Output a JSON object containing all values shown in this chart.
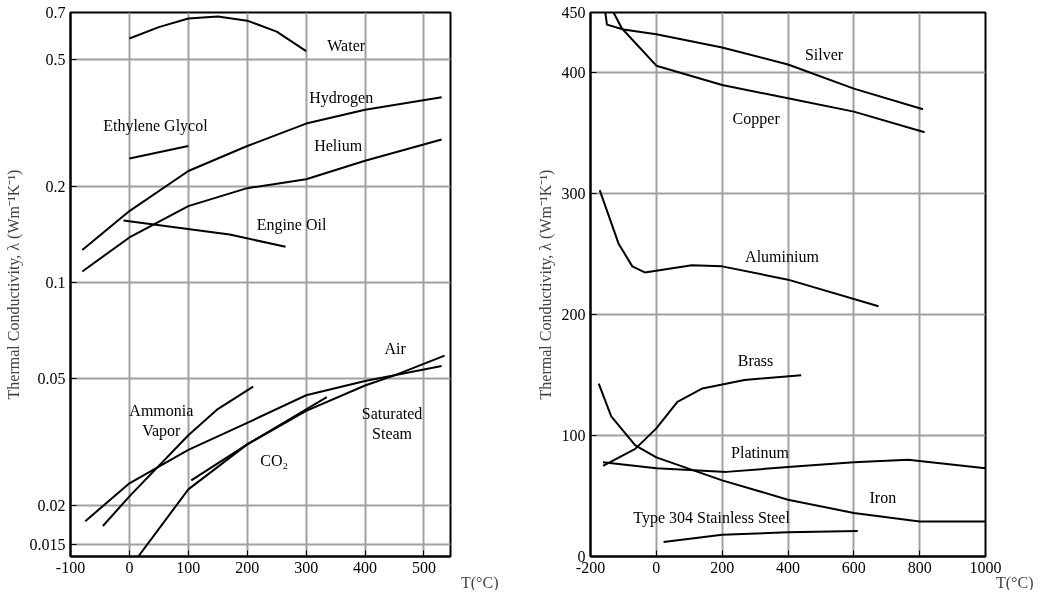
{
  "chart_data": [
    {
      "type": "line",
      "xlabel": "T(°C)",
      "ylabel": "Thermal Conductivity, λ (Wm⁻¹K⁻¹)",
      "log": "y",
      "grid": true,
      "line_style": "solid",
      "xlim": [
        -100,
        545
      ],
      "xticks": [
        -100,
        0,
        100,
        200,
        300,
        400,
        500
      ],
      "ylim": [
        0.0138,
        0.7
      ],
      "yticks": [
        0.015,
        0.02,
        0.05,
        0.1,
        0.2,
        0.5,
        0.7
      ],
      "series": [
        {
          "name": "Water",
          "color": "#000000",
          "x": [
            0,
            50,
            100,
            150,
            200,
            250,
            300
          ],
          "values": [
            0.58,
            0.63,
            0.67,
            0.68,
            0.66,
            0.61,
            0.53
          ]
        },
        {
          "name": "Hydrogen",
          "color": "#000000",
          "x": [
            -80,
            0,
            100,
            200,
            300,
            400,
            530
          ],
          "values": [
            0.126,
            0.167,
            0.223,
            0.267,
            0.314,
            0.347,
            0.38
          ]
        },
        {
          "name": "Helium",
          "color": "#000000",
          "x": [
            -80,
            0,
            100,
            200,
            300,
            400,
            530
          ],
          "values": [
            0.108,
            0.138,
            0.173,
            0.197,
            0.21,
            0.24,
            0.28
          ]
        },
        {
          "name": "Ethylene Glycol",
          "color": "#000000",
          "x": [
            0,
            100
          ],
          "values": [
            0.244,
            0.267
          ]
        },
        {
          "name": "Engine Oil",
          "color": "#000000",
          "x": [
            -10,
            170,
            265
          ],
          "values": [
            0.156,
            0.141,
            0.129
          ]
        },
        {
          "name": "Air",
          "color": "#000000",
          "x": [
            -75,
            0,
            100,
            200,
            300,
            400,
            530
          ],
          "values": [
            0.0178,
            0.0234,
            0.0298,
            0.0362,
            0.0442,
            0.049,
            0.0546
          ]
        },
        {
          "name": "Saturated Steam",
          "color": "#000000",
          "x": [
            15,
            100,
            200,
            300,
            400,
            450,
            535
          ],
          "values": [
            0.0138,
            0.0224,
            0.031,
            0.0395,
            0.0474,
            0.051,
            0.0588
          ]
        },
        {
          "name": "Ammonia Vapor",
          "color": "#000000",
          "x": [
            -45,
            0,
            100,
            150,
            210
          ],
          "values": [
            0.0172,
            0.0213,
            0.0331,
            0.04,
            0.047
          ]
        },
        {
          "name": "CO₂",
          "color": "#000000",
          "x": [
            105,
            200,
            335
          ],
          "values": [
            0.0239,
            0.031,
            0.0436
          ]
        }
      ]
    },
    {
      "type": "line",
      "xlabel": "T(°C)",
      "ylabel": "Thermal Conductivity, λ (Wm⁻¹K⁻¹)",
      "grid": true,
      "line_style": "solid",
      "xlim": [
        -200,
        1000
      ],
      "xticks": [
        -200,
        0,
        200,
        400,
        600,
        800,
        1000
      ],
      "ylim": [
        0,
        450
      ],
      "yticks": [
        0,
        100,
        200,
        300,
        400,
        450
      ],
      "series": [
        {
          "name": "Silver",
          "color": "#000000",
          "x": [
            -155,
            -150,
            -100,
            0,
            200,
            400,
            600,
            810
          ],
          "values": [
            450,
            440,
            436,
            432,
            421,
            407,
            387,
            370
          ]
        },
        {
          "name": "Copper",
          "color": "#000000",
          "x": [
            -130,
            -105,
            0,
            200,
            400,
            600,
            815
          ],
          "values": [
            450,
            437,
            406,
            390,
            379,
            368,
            351
          ]
        },
        {
          "name": "Aluminium",
          "color": "#000000",
          "x": [
            -172,
            -115,
            -73,
            -35,
            108,
            200,
            400,
            675
          ],
          "values": [
            303,
            259,
            240,
            235,
            241,
            240,
            229,
            207
          ]
        },
        {
          "name": "Brass",
          "color": "#000000",
          "x": [
            -162,
            -64,
            0,
            64,
            140,
            268,
            440
          ],
          "values": [
            75,
            89,
            106,
            128,
            139,
            146,
            150
          ]
        },
        {
          "name": "Iron",
          "color": "#000000",
          "x": [
            -175,
            -137,
            -64,
            0,
            200,
            400,
            600,
            800,
            1000
          ],
          "values": [
            143,
            116,
            92,
            82,
            63,
            47,
            36,
            29,
            29
          ]
        },
        {
          "name": "Platinum",
          "color": "#000000",
          "x": [
            -162,
            0,
            213,
            400,
            600,
            765,
            1000
          ],
          "values": [
            78,
            73,
            70,
            74,
            78,
            80,
            73
          ]
        },
        {
          "name": "Type 304 Stainless Steel",
          "color": "#000000",
          "x": [
            22,
            200,
            400,
            612
          ],
          "values": [
            12,
            18,
            20,
            21
          ]
        }
      ]
    }
  ]
}
